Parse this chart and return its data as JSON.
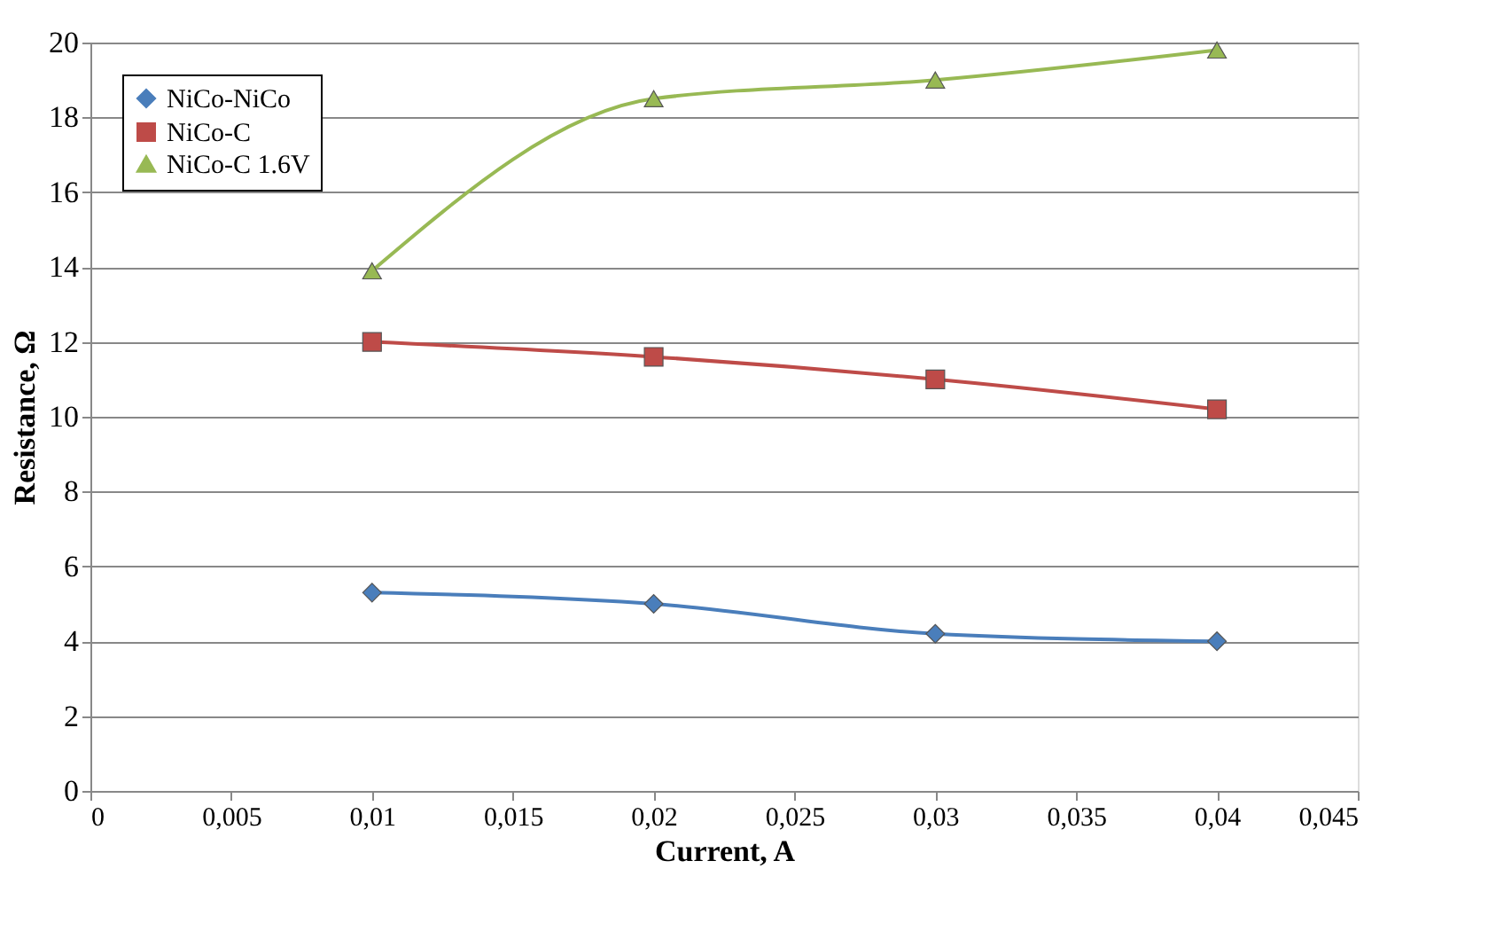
{
  "chart_data": {
    "type": "line",
    "xlabel": "Current, A",
    "ylabel": "Resistance, Ω",
    "x": [
      0.01,
      0.02,
      0.03,
      0.04
    ],
    "series": [
      {
        "name": "NiCo-NiCo",
        "color": "#4a7ebb",
        "marker": "diamond",
        "values": [
          5.3,
          5.0,
          4.2,
          4.0
        ]
      },
      {
        "name": "NiCo-C",
        "color": "#be4b48",
        "marker": "square",
        "values": [
          12.0,
          11.6,
          11.0,
          10.2
        ]
      },
      {
        "name": "NiCo-C 1.6V",
        "color": "#98b954",
        "marker": "triangle",
        "values": [
          13.9,
          18.5,
          19.0,
          19.8
        ]
      }
    ],
    "xlim": [
      0,
      0.045
    ],
    "xticks": [
      0,
      {
        "value": 0.005,
        "label": "0,005"
      },
      {
        "value": 0.01,
        "label": "0,01"
      },
      {
        "value": 0.015,
        "label": "0,015"
      },
      {
        "value": 0.02,
        "label": "0,02"
      },
      {
        "value": 0.025,
        "label": "0,025"
      },
      {
        "value": 0.03,
        "label": "0,03"
      },
      {
        "value": 0.035,
        "label": "0,035"
      },
      {
        "value": 0.04,
        "label": "0,04"
      },
      {
        "value": 0.045,
        "label": "0,045"
      }
    ],
    "ylim": [
      0,
      20
    ],
    "yticks": [
      0,
      2,
      4,
      6,
      8,
      10,
      12,
      14,
      16,
      18,
      20
    ],
    "grid": "y",
    "legend": "top left",
    "line_style": "solid"
  }
}
